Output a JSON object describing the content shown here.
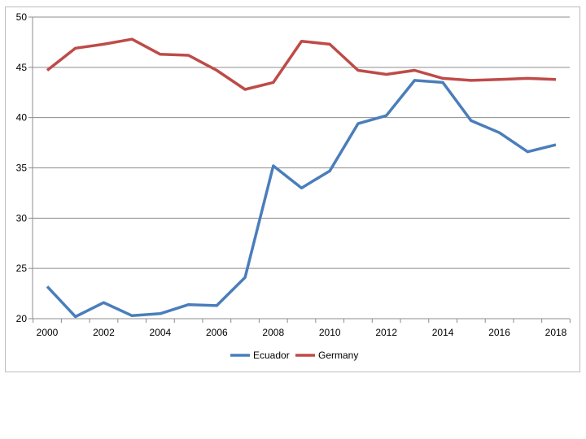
{
  "chart_data": {
    "type": "line",
    "title": "",
    "xlabel": "",
    "ylabel": "",
    "x": [
      2000,
      2001,
      2002,
      2003,
      2004,
      2005,
      2006,
      2007,
      2008,
      2009,
      2010,
      2011,
      2012,
      2013,
      2014,
      2015,
      2016,
      2017,
      2018
    ],
    "x_tick_labels": [
      "2000",
      "2002",
      "2004",
      "2006",
      "2008",
      "2010",
      "2012",
      "2014",
      "2016",
      "2018"
    ],
    "y_tick_labels": [
      "20",
      "25",
      "30",
      "35",
      "40",
      "45",
      "50"
    ],
    "ylim": [
      20,
      50
    ],
    "xlim": [
      2000,
      2018
    ],
    "grid": "horizontal",
    "legend_position": "bottom",
    "series": [
      {
        "name": "Ecuador",
        "color": "#4a7ebb",
        "values": [
          23.2,
          20.2,
          21.6,
          20.3,
          20.5,
          21.4,
          21.3,
          24.1,
          35.2,
          33.0,
          34.7,
          39.4,
          40.2,
          43.7,
          43.5,
          39.7,
          38.5,
          36.6,
          37.3
        ]
      },
      {
        "name": "Germany",
        "color": "#be4b48",
        "values": [
          44.7,
          46.9,
          47.3,
          47.8,
          46.3,
          46.2,
          44.7,
          42.8,
          43.5,
          47.6,
          47.3,
          44.7,
          44.3,
          44.7,
          43.9,
          43.7,
          43.8,
          43.9,
          43.8
        ]
      }
    ]
  }
}
